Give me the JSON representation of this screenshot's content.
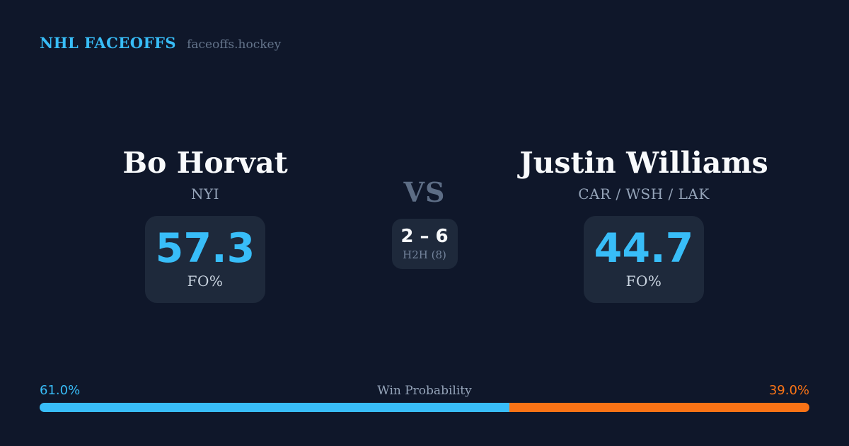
{
  "theme": {
    "background": "#0f172a",
    "card_background": "#1e293b",
    "accent_blue": "#38bdf8",
    "accent_orange": "#f97316",
    "text_primary": "#f8fafc",
    "text_muted": "#94a3b8",
    "text_faint": "#64748b"
  },
  "header": {
    "brand": "NHL FACEOFFS",
    "site": "faceoffs.hockey"
  },
  "matchup": {
    "player_left": {
      "name": "Bo Horvat",
      "teams": "NYI",
      "stat_value": "57.3",
      "stat_label": "FO%"
    },
    "versus": {
      "label": "VS",
      "h2h_score": "2 – 6",
      "h2h_label": "H2H (8)"
    },
    "player_right": {
      "name": "Justin Williams",
      "teams": "CAR / WSH / LAK",
      "stat_value": "44.7",
      "stat_label": "FO%"
    }
  },
  "win_probability": {
    "label": "Win Probability",
    "left_pct": 61.0,
    "right_pct": 39.0,
    "left_pct_label": "61.0%",
    "right_pct_label": "39.0%"
  }
}
